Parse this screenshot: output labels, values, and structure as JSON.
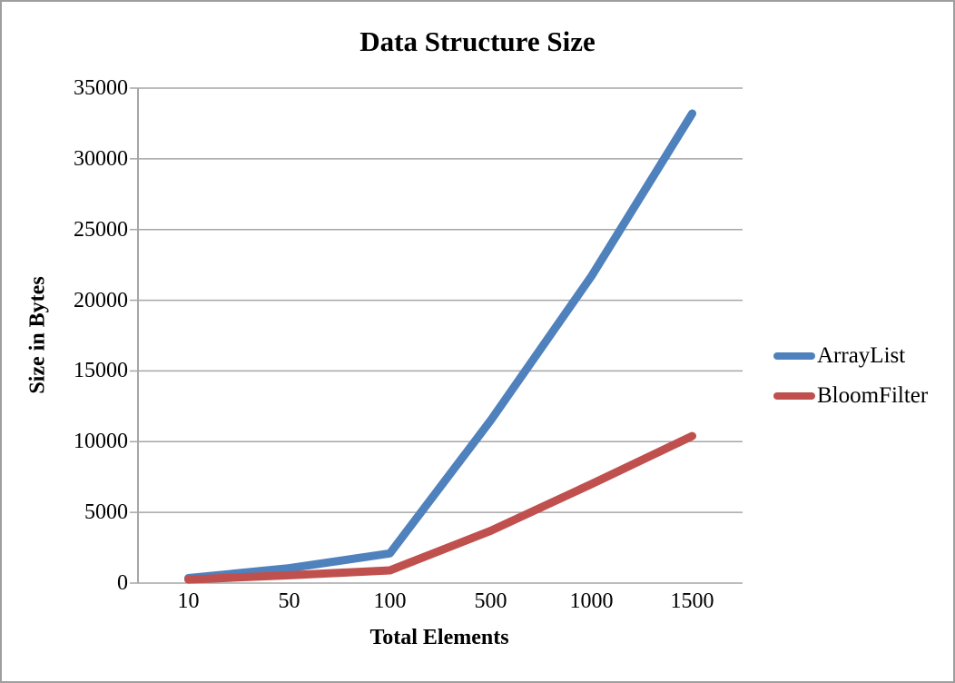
{
  "window": {
    "background": "#ffffff",
    "border_color": "#9e9e9e"
  },
  "chart_data": {
    "type": "line",
    "title": "Data Structure Size",
    "xlabel": "Total Elements",
    "ylabel": "Size in Bytes",
    "categories": [
      "10",
      "50",
      "100",
      "500",
      "1000",
      "1500"
    ],
    "series": [
      {
        "name": "ArrayList",
        "color": "#4F81BD",
        "values": [
          350,
          1050,
          2100,
          11500,
          21700,
          33200
        ]
      },
      {
        "name": "BloomFilter",
        "color": "#C0504D",
        "values": [
          250,
          550,
          900,
          3700,
          7000,
          10400
        ]
      }
    ],
    "y_tick_labels": [
      "0",
      "5000",
      "10000",
      "15000",
      "20000",
      "25000",
      "30000",
      "35000"
    ],
    "ylim": [
      0,
      35000
    ],
    "grid": "horizontal",
    "gridline_color": "#A6A6A6",
    "axis_color": "#A6A6A6",
    "legend_position": "right",
    "line_width": 9
  }
}
